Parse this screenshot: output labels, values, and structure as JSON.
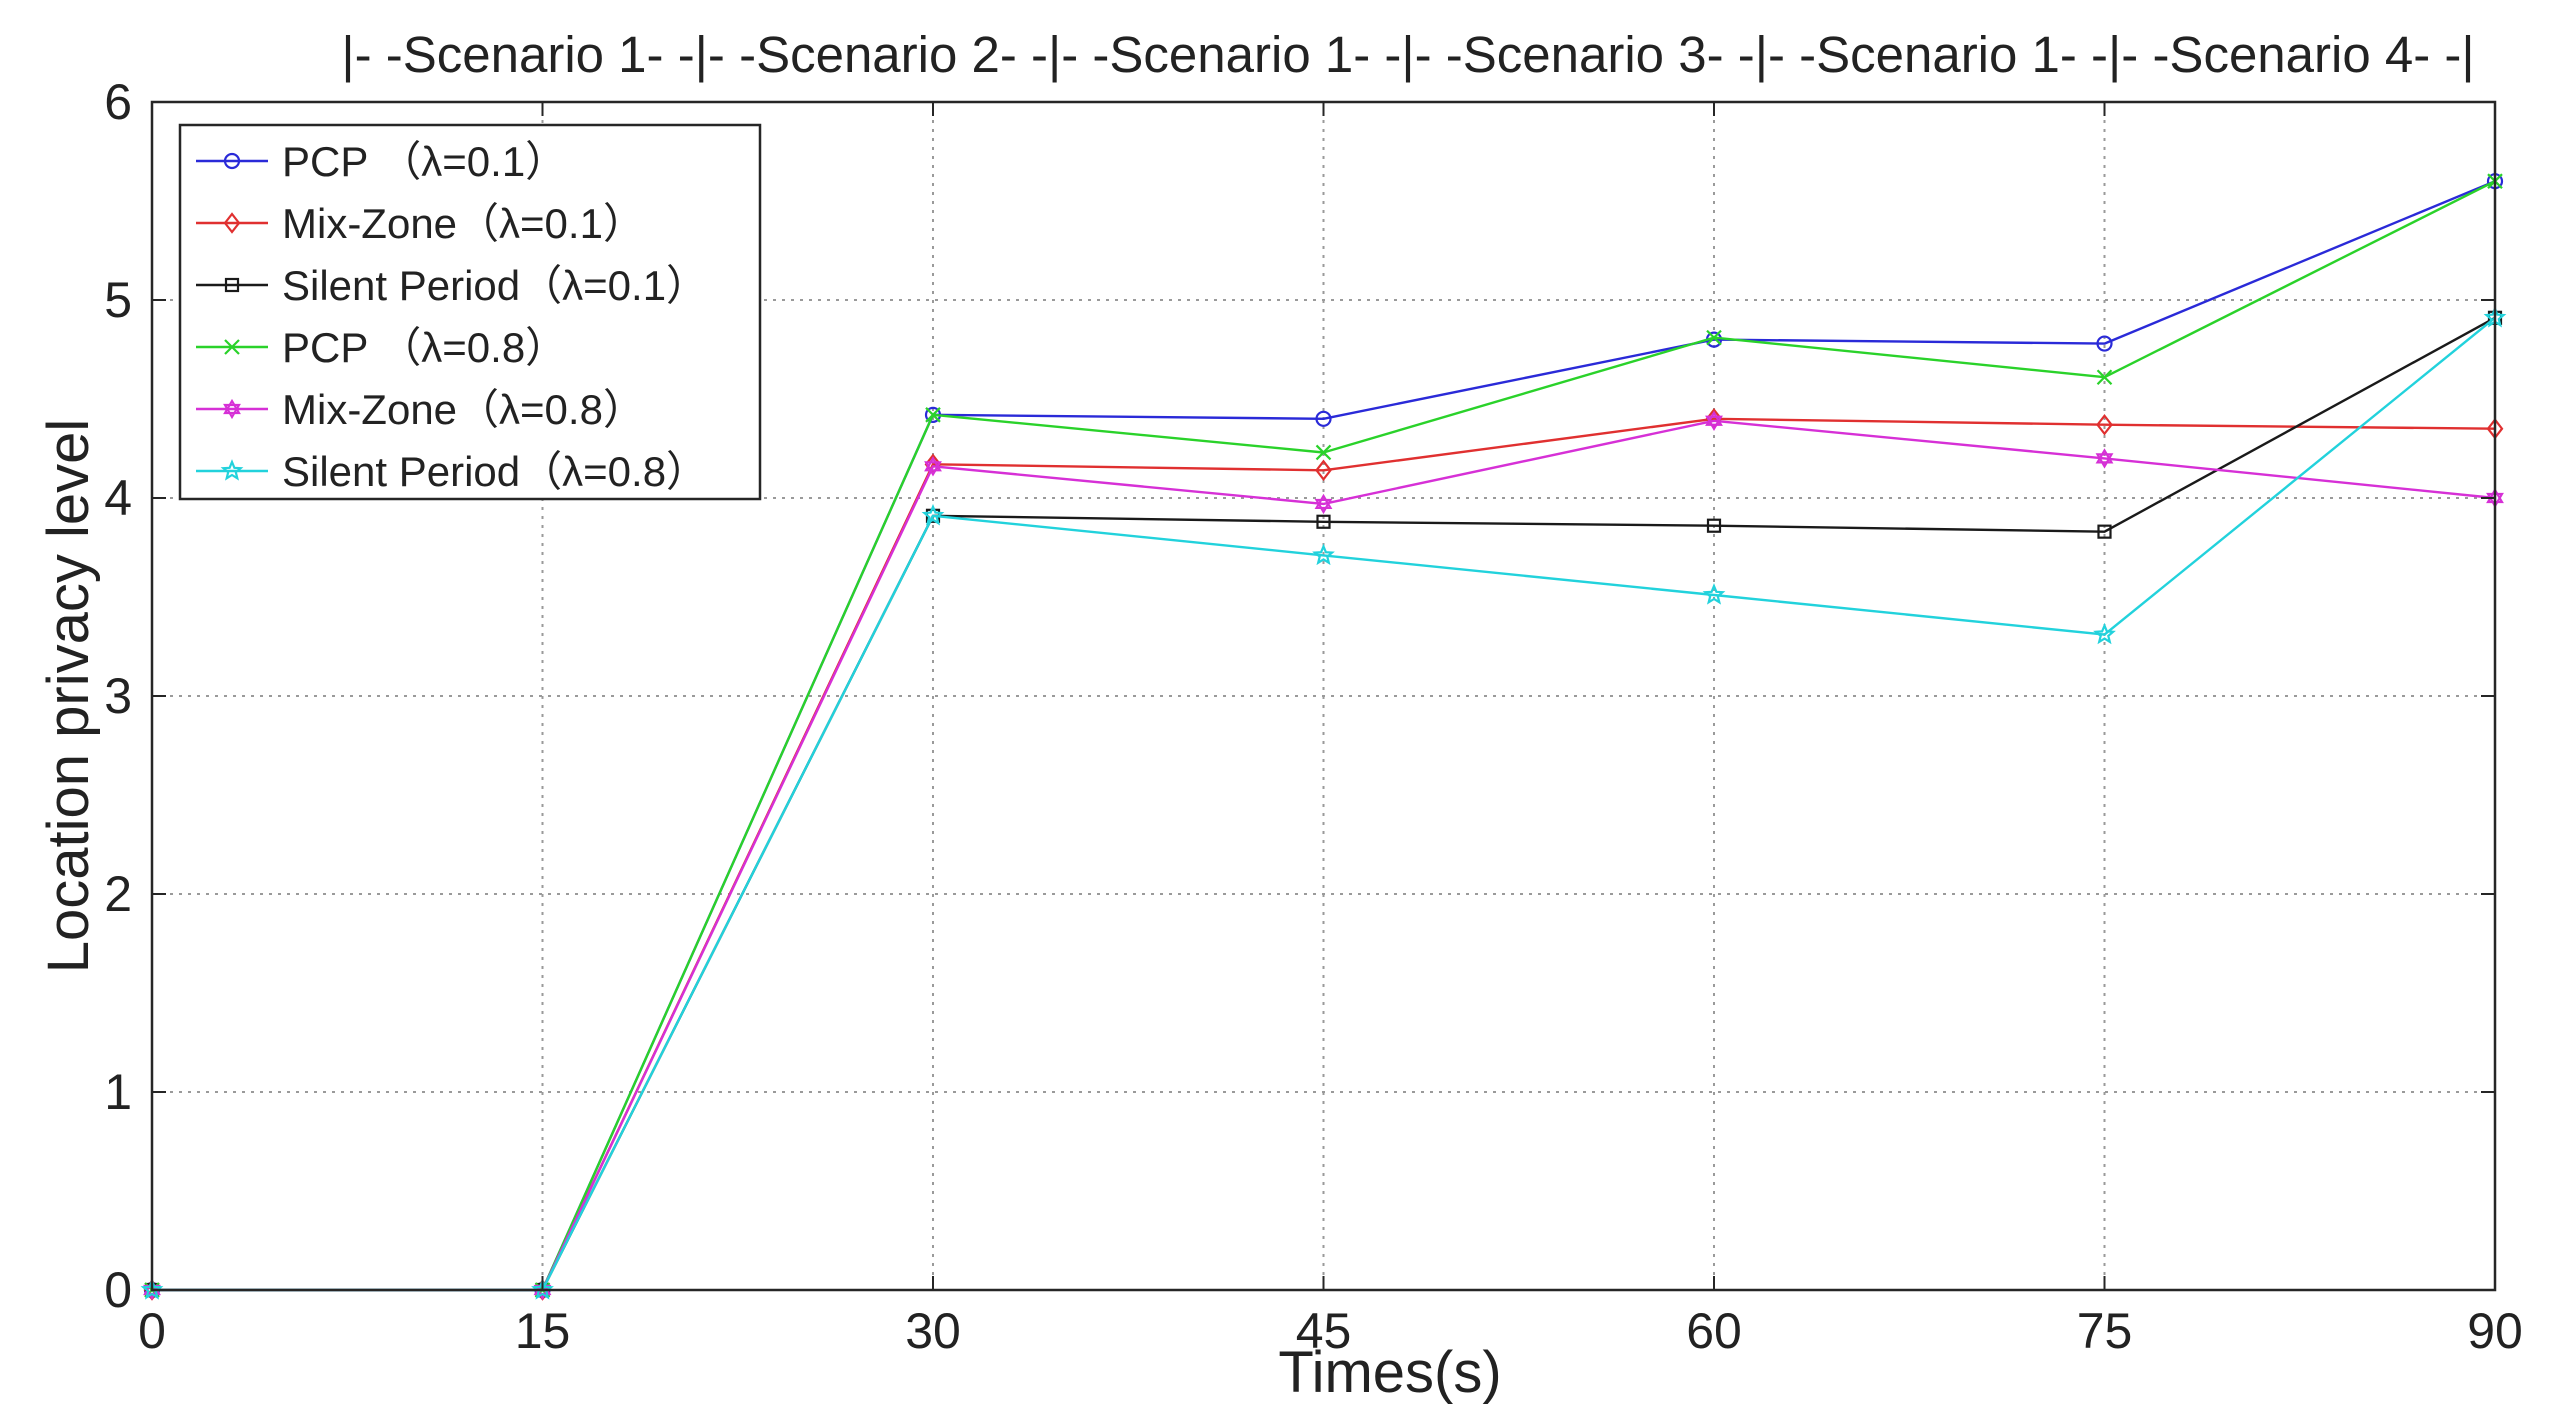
{
  "chart_data": {
    "type": "line",
    "title": "|- -Scenario 1- -|- -Scenario 2- -|- -Scenario 1- -|- -Scenario 3- -|- -Scenario 1- -|- -Scenario 4- -|",
    "xlabel": "Times(s)",
    "ylabel": "Location privacy level",
    "x": [
      0,
      15,
      30,
      45,
      60,
      75,
      90
    ],
    "xticks": [
      "0",
      "15",
      "30",
      "45",
      "60",
      "75",
      "90"
    ],
    "yticks": [
      "0",
      "1",
      "2",
      "3",
      "4",
      "5",
      "6"
    ],
    "xlim": [
      0,
      90
    ],
    "ylim": [
      0,
      6
    ],
    "grid": true,
    "legend_position": "top-left",
    "series": [
      {
        "name": "PCP （λ=0.1）",
        "color": "#2a2ad8",
        "marker": "circle",
        "values": [
          0,
          0,
          4.42,
          4.4,
          4.8,
          4.78,
          5.6
        ]
      },
      {
        "name": "Mix-Zone（λ=0.1）",
        "color": "#e03030",
        "marker": "diamond",
        "values": [
          0,
          0,
          4.17,
          4.14,
          4.4,
          4.37,
          4.35
        ]
      },
      {
        "name": "Silent Period（λ=0.1）",
        "color": "#1a1a1a",
        "marker": "square",
        "values": [
          0,
          0,
          3.91,
          3.88,
          3.86,
          3.83,
          4.91
        ]
      },
      {
        "name": "PCP （λ=0.8）",
        "color": "#2ad22a",
        "marker": "x",
        "values": [
          0,
          0,
          4.42,
          4.23,
          4.81,
          4.61,
          5.6
        ]
      },
      {
        "name": "Mix-Zone（λ=0.8）",
        "color": "#d630d6",
        "marker": "hexagram",
        "values": [
          0,
          0,
          4.16,
          3.97,
          4.39,
          4.2,
          4.0
        ]
      },
      {
        "name": "Silent Period（λ=0.8）",
        "color": "#22d2dc",
        "marker": "star",
        "values": [
          0,
          0,
          3.91,
          3.71,
          3.51,
          3.31,
          4.91
        ]
      }
    ]
  }
}
